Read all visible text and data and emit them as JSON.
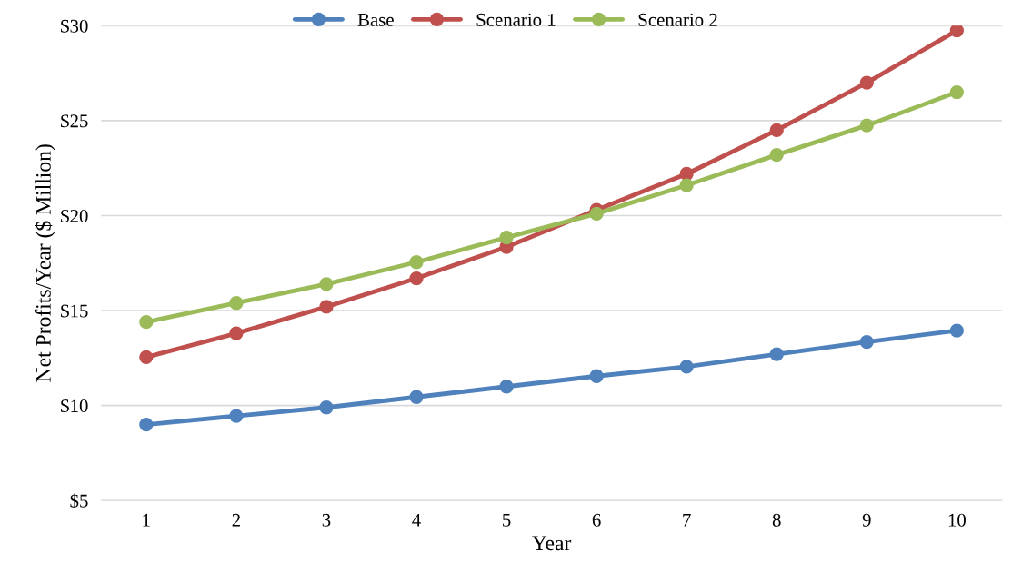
{
  "chart_data": {
    "type": "line",
    "xlabel": "Year",
    "ylabel": "Net Profits/Year ($ Million)",
    "categories": [
      "1",
      "2",
      "3",
      "4",
      "5",
      "6",
      "7",
      "8",
      "9",
      "10"
    ],
    "series": [
      {
        "name": "Base",
        "color": "#4f81bd",
        "values": [
          9.0,
          9.45,
          9.9,
          10.45,
          11.0,
          11.55,
          12.05,
          12.7,
          13.35,
          13.95
        ]
      },
      {
        "name": "Scenario 1",
        "color": "#c0504d",
        "values": [
          12.55,
          13.8,
          15.2,
          16.7,
          18.35,
          20.3,
          22.2,
          24.5,
          27.0,
          29.75
        ]
      },
      {
        "name": "Scenario 2",
        "color": "#9bbb59",
        "values": [
          14.4,
          15.4,
          16.4,
          17.55,
          18.85,
          20.1,
          21.6,
          23.2,
          24.75,
          26.5
        ]
      }
    ],
    "ylim": [
      5,
      30
    ],
    "yticks": [
      {
        "value": 5,
        "label": "$5"
      },
      {
        "value": 10,
        "label": "$10"
      },
      {
        "value": 15,
        "label": "$15"
      },
      {
        "value": 20,
        "label": "$20"
      },
      {
        "value": 25,
        "label": "$25"
      },
      {
        "value": 30,
        "label": "$30"
      }
    ],
    "grid": "y",
    "legend": "top",
    "marker": "circle",
    "line_style": "solid"
  }
}
